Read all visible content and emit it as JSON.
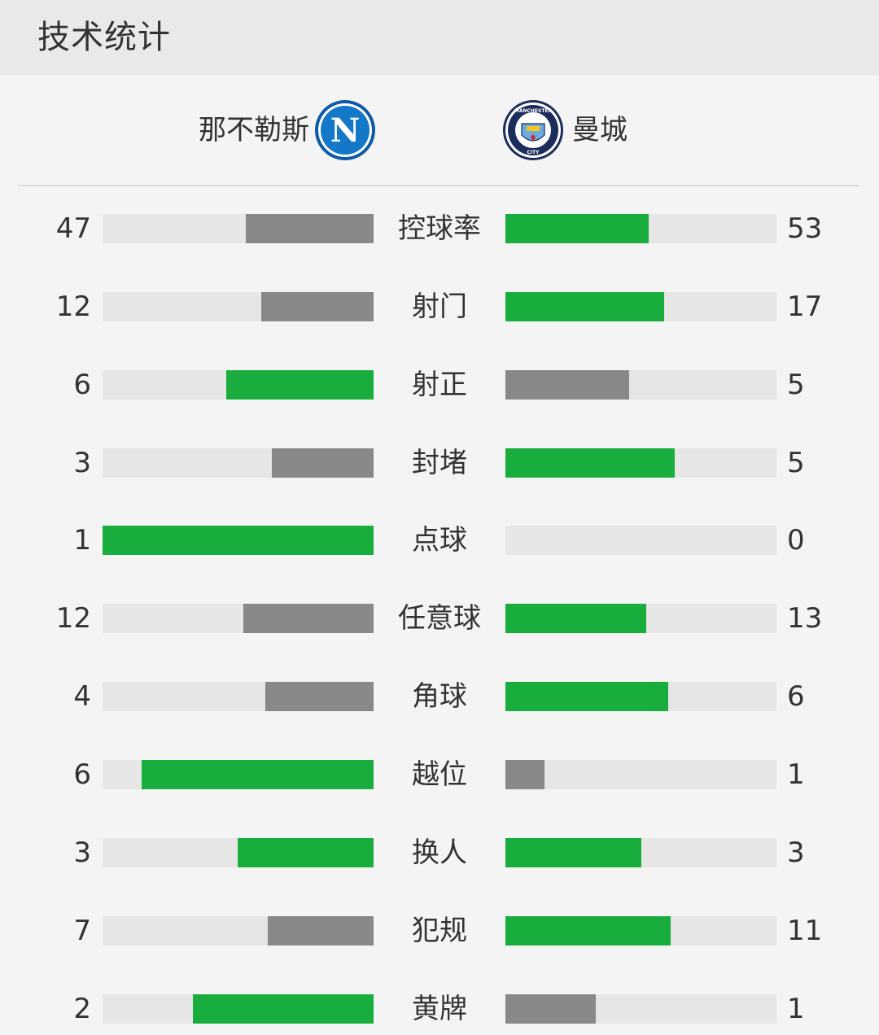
{
  "header": {
    "title": "技术统计"
  },
  "teams": {
    "home": {
      "name": "那不勒斯",
      "logo_icon": "napoli-logo-icon",
      "logo_letter": "N"
    },
    "away": {
      "name": "曼城",
      "logo_icon": "man-city-logo-icon",
      "logo_text_top": "MANCHESTER",
      "logo_text_bottom": "CITY"
    }
  },
  "colors": {
    "leader": "#19ad3d",
    "trailer": "#888888",
    "track": "#e6e6e6",
    "napoli_blue": "#1478c8",
    "city_blue": "#6cabdd"
  },
  "stats": [
    {
      "label": "控球率",
      "home": "47",
      "away": "53",
      "home_frac": 0.47,
      "away_frac": 0.53,
      "home_color": "trailer",
      "away_color": "leader"
    },
    {
      "label": "射门",
      "home": "12",
      "away": "17",
      "home_frac": 0.414,
      "away_frac": 0.586,
      "home_color": "trailer",
      "away_color": "leader"
    },
    {
      "label": "射正",
      "home": "6",
      "away": "5",
      "home_frac": 0.545,
      "away_frac": 0.455,
      "home_color": "leader",
      "away_color": "trailer"
    },
    {
      "label": "封堵",
      "home": "3",
      "away": "5",
      "home_frac": 0.375,
      "away_frac": 0.625,
      "home_color": "trailer",
      "away_color": "leader"
    },
    {
      "label": "点球",
      "home": "1",
      "away": "0",
      "home_frac": 1.0,
      "away_frac": 0.0,
      "home_color": "leader",
      "away_color": "trailer"
    },
    {
      "label": "任意球",
      "home": "12",
      "away": "13",
      "home_frac": 0.48,
      "away_frac": 0.52,
      "home_color": "trailer",
      "away_color": "leader"
    },
    {
      "label": "角球",
      "home": "4",
      "away": "6",
      "home_frac": 0.4,
      "away_frac": 0.6,
      "home_color": "trailer",
      "away_color": "leader"
    },
    {
      "label": "越位",
      "home": "6",
      "away": "1",
      "home_frac": 0.857,
      "away_frac": 0.143,
      "home_color": "leader",
      "away_color": "trailer"
    },
    {
      "label": "换人",
      "home": "3",
      "away": "3",
      "home_frac": 0.5,
      "away_frac": 0.5,
      "home_color": "leader",
      "away_color": "leader"
    },
    {
      "label": "犯规",
      "home": "7",
      "away": "11",
      "home_frac": 0.389,
      "away_frac": 0.611,
      "home_color": "trailer",
      "away_color": "leader"
    },
    {
      "label": "黄牌",
      "home": "2",
      "away": "1",
      "home_frac": 0.667,
      "away_frac": 0.333,
      "home_color": "leader",
      "away_color": "trailer"
    }
  ]
}
